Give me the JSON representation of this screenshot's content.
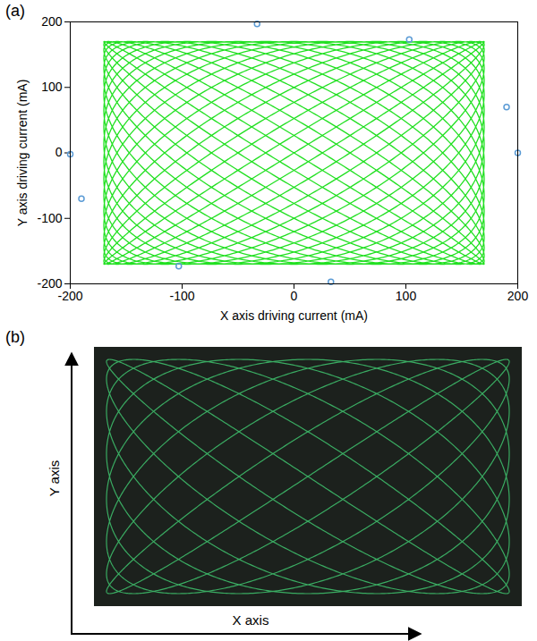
{
  "chart_data": [
    {
      "panel": "(a)",
      "type": "line",
      "xlabel": "X axis driving current (mA)",
      "ylabel": "Y axis driving current (mA)",
      "xlim": [
        -200,
        200
      ],
      "xticks": [
        -200,
        -100,
        0,
        100,
        200
      ],
      "ylim": [
        -200,
        200
      ],
      "yticks": [
        -200,
        -100,
        0,
        100,
        200
      ],
      "grid": false,
      "series": [
        {
          "type": "line",
          "color": "#22e022",
          "x_amplitude": 170,
          "y_amplitude": 170,
          "x_frequency": 20,
          "y_frequency": 21
        },
        {
          "type": "scatter",
          "marker": "circle",
          "color": "#5b9bd5",
          "x": [
            -200,
            -190,
            -103,
            33,
            -33,
            103,
            190,
            200
          ],
          "y": [
            -2,
            -70,
            -173,
            -197,
            197,
            173,
            70,
            0
          ]
        }
      ]
    },
    {
      "panel": "(b)",
      "type": "photo",
      "xlabel": "X axis",
      "ylabel": "Y axis",
      "color": "#1c211d",
      "series": [
        {
          "type": "line",
          "color": "#3fc46e",
          "x_amplitude": 1,
          "y_amplitude": 1,
          "x_frequency": 8,
          "y_frequency": 9
        }
      ]
    }
  ]
}
